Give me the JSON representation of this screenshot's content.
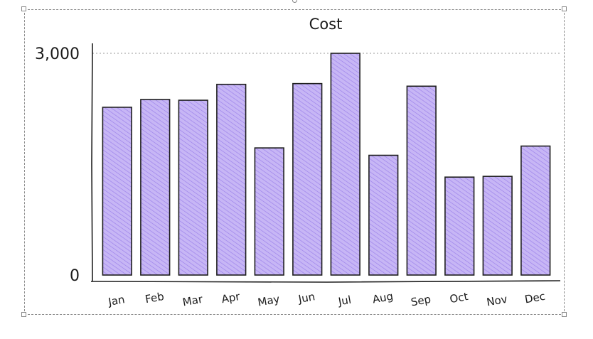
{
  "chart_data": {
    "type": "bar",
    "title": "Cost",
    "xlabel": "",
    "ylabel": "",
    "categories": [
      "Jan",
      "Feb",
      "Mar",
      "Apr",
      "May",
      "Jun",
      "Jul",
      "Aug",
      "Sep",
      "Oct",
      "Nov",
      "Dec"
    ],
    "values": [
      2270,
      2375,
      2365,
      2580,
      1720,
      2590,
      3000,
      1620,
      2555,
      1325,
      1335,
      1745
    ],
    "ylim": [
      0,
      3000
    ],
    "yticks": [
      {
        "value": 0,
        "label": "0"
      },
      {
        "value": 3000,
        "label": "3,000"
      }
    ],
    "grid": "dotted line at max value",
    "legend": "none",
    "bar_fill_color": "#c7b6f5",
    "bar_hatch_color": "#9a80ea",
    "bar_stroke_color": "#1e1e1e"
  }
}
